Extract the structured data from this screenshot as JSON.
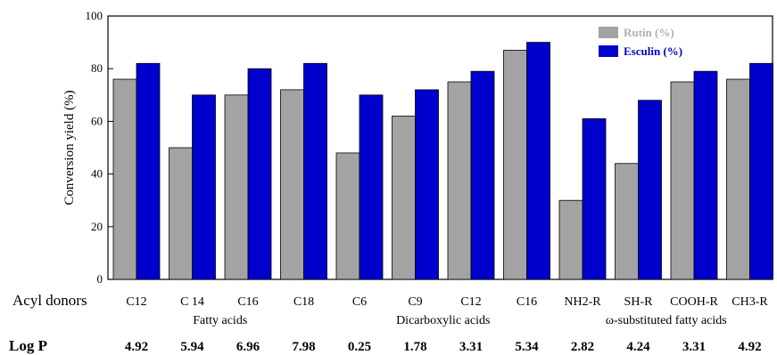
{
  "chart_data": {
    "type": "bar",
    "ylabel": "Conversion yield (%)",
    "ylim": [
      0,
      100
    ],
    "yticks": [
      0,
      20,
      40,
      60,
      80,
      100
    ],
    "grid": false,
    "legend_position": "top-right",
    "categories": [
      "C12",
      "C 14",
      "C16",
      "C18",
      "C6",
      "C9",
      "C12",
      "C16",
      "NH2-R",
      "SH-R",
      "COOH-R",
      "CH3-R"
    ],
    "series": [
      {
        "name": "Rutin (%)",
        "color": "#a3a3a3",
        "values": [
          76,
          50,
          70,
          72,
          48,
          62,
          75,
          87,
          30,
          44,
          75,
          76
        ]
      },
      {
        "name": "Esculin (%)",
        "color": "#0000cc",
        "values": [
          82,
          70,
          80,
          82,
          70,
          72,
          79,
          90,
          61,
          68,
          79,
          82
        ]
      }
    ],
    "row_labels": {
      "acyl_donors": "Acyl donors",
      "log_p": "Log P"
    },
    "groups": [
      {
        "label": "Fatty acids",
        "start": 0,
        "end": 3
      },
      {
        "label": "Dicarboxylic acids",
        "start": 4,
        "end": 7
      },
      {
        "label": "ω-substituted fatty acids",
        "start": 8,
        "end": 11
      }
    ],
    "log_p": [
      "4.92",
      "5.94",
      "6.96",
      "7.98",
      "0.25",
      "1.78",
      "3.31",
      "5.34",
      "2.82",
      "4.24",
      "3.31",
      "4.92"
    ]
  }
}
